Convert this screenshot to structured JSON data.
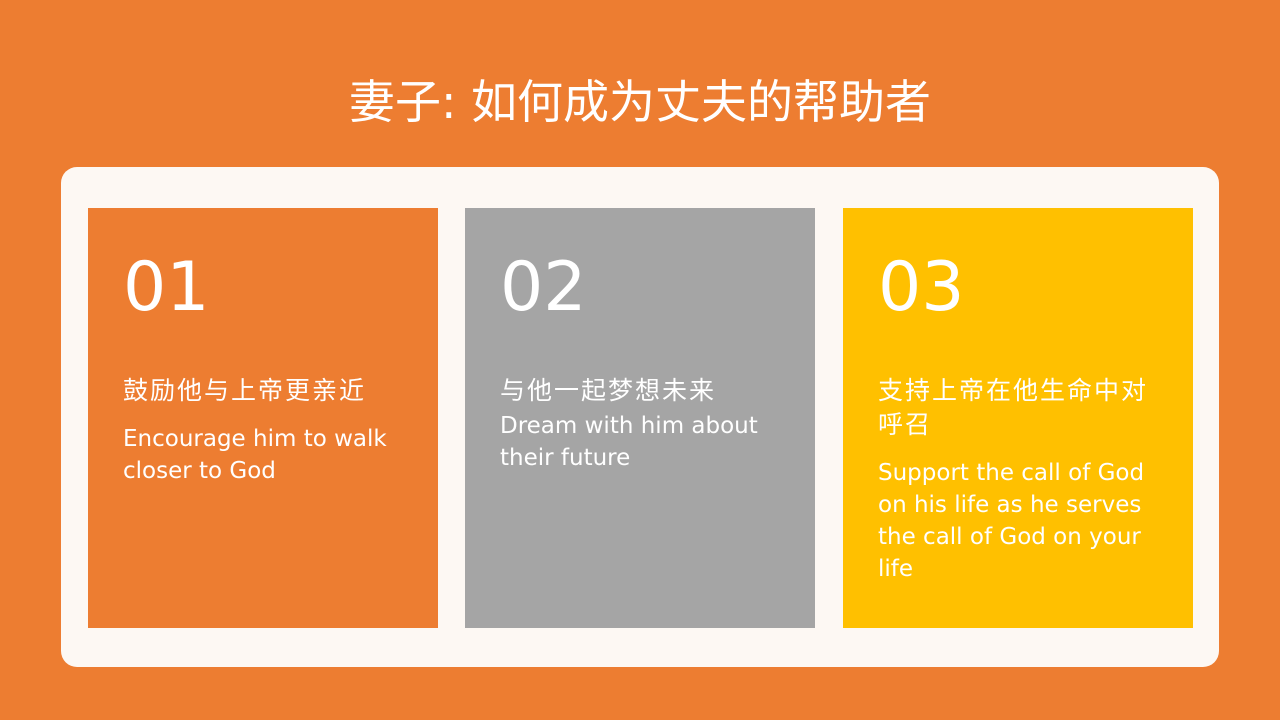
{
  "slide": {
    "title": "妻子: 如何成为丈夫的帮助者"
  },
  "colors": {
    "background": "#ED7D31",
    "panel": "#FDF8F3",
    "card1": "#ED7D31",
    "card2": "#A5A5A5",
    "card3": "#FFC000",
    "text": "#FFFFFF"
  },
  "cards": [
    {
      "number": "01",
      "chinese": "鼓励他与上帝更亲近",
      "english": "Encourage him to walk closer to God"
    },
    {
      "number": "02",
      "chinese": "与他一起梦想未来",
      "english": "Dream with him about their future"
    },
    {
      "number": "03",
      "chinese": "支持上帝在他生命中对呼召",
      "english": "Support the call of God on his life as he serves the call of God on your life"
    }
  ]
}
